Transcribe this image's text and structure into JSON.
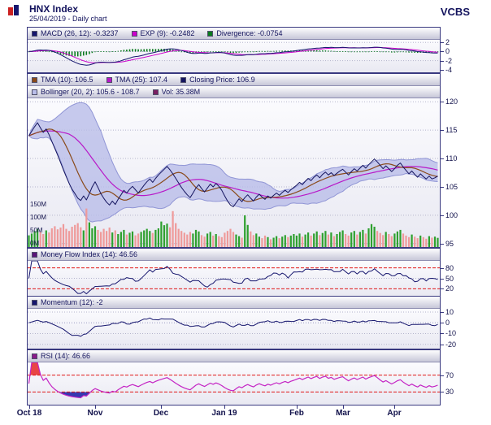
{
  "header": {
    "title": "HNX Index",
    "subtitle": "25/04/2019 - Daily chart",
    "brand": "VCBS"
  },
  "chart_data": {
    "type": "line",
    "title": "HNX Index",
    "subtitle": "25/04/2019 - Daily chart",
    "x_axis": {
      "tick_labels": [
        "Oct 18",
        "Nov",
        "Dec",
        "Jan 19",
        "Feb",
        "Mar",
        "Apr"
      ],
      "tick_indices": [
        0,
        23,
        46,
        68,
        93,
        109,
        127
      ]
    },
    "series": {
      "close": [
        114.0,
        114.8,
        115.6,
        116.3,
        115.4,
        114.6,
        115.2,
        114.2,
        113.0,
        111.8,
        110.6,
        109.3,
        108.0,
        106.8,
        105.6,
        104.6,
        103.8,
        103.0,
        102.6,
        103.4,
        102.7,
        103.8,
        105.0,
        105.9,
        104.9,
        103.8,
        103.0,
        102.3,
        101.8,
        102.5,
        101.9,
        102.8,
        103.6,
        104.4,
        103.9,
        104.6,
        105.1,
        104.5,
        103.9,
        104.6,
        105.3,
        105.9,
        106.4,
        105.8,
        106.5,
        107.1,
        107.6,
        108.1,
        108.6,
        108.0,
        107.3,
        106.5,
        105.7,
        104.9,
        104.2,
        103.6,
        103.1,
        103.9,
        104.8,
        105.4,
        104.7,
        104.1,
        104.8,
        105.5,
        105.0,
        105.6,
        105.1,
        104.4,
        103.4,
        102.5,
        101.8,
        101.5,
        102.2,
        102.9,
        102.4,
        103.1,
        103.6,
        103.0,
        102.5,
        103.2,
        103.7,
        103.2,
        102.8,
        103.4,
        103.0,
        103.5,
        103.9,
        103.5,
        104.0,
        104.4,
        104.0,
        104.5,
        104.9,
        105.3,
        105.8,
        105.4,
        106.0,
        106.5,
        106.1,
        106.7,
        107.1,
        106.6,
        107.2,
        107.6,
        107.1,
        107.5,
        107.0,
        107.4,
        107.8,
        108.1,
        107.6,
        107.1,
        107.7,
        108.2,
        107.8,
        108.3,
        108.8,
        108.3,
        108.9,
        109.4,
        109.9,
        109.4,
        108.8,
        108.2,
        108.7,
        108.2,
        107.7,
        108.2,
        108.8,
        109.2,
        108.5,
        107.9,
        107.3,
        107.8,
        107.2,
        106.7,
        107.3,
        106.8,
        106.4,
        106.9,
        106.4,
        106.6,
        106.9
      ],
      "volume_m": [
        45,
        52,
        61,
        70,
        58,
        50,
        64,
        56,
        72,
        80,
        68,
        75,
        88,
        70,
        62,
        78,
        85,
        92,
        76,
        64,
        148,
        95,
        72,
        80,
        66,
        58,
        70,
        62,
        75,
        56,
        64,
        50,
        58,
        66,
        48,
        55,
        60,
        45,
        52,
        58,
        64,
        70,
        62,
        54,
        66,
        72,
        98,
        84,
        90,
        76,
        138,
        92,
        70,
        62,
        55,
        48,
        58,
        52,
        66,
        60,
        46,
        40,
        52,
        58,
        44,
        50,
        42,
        38,
        55,
        62,
        70,
        58,
        48,
        42,
        36,
        122,
        85,
        60,
        46,
        52,
        40,
        34,
        44,
        38,
        30,
        36,
        42,
        34,
        40,
        46,
        38,
        44,
        50,
        44,
        52,
        40,
        48,
        56,
        44,
        52,
        60,
        46,
        54,
        62,
        48,
        56,
        42,
        50,
        58,
        64,
        50,
        44,
        56,
        62,
        48,
        58,
        66,
        52,
        72,
        88,
        78,
        62,
        54,
        46,
        58,
        50,
        42,
        52,
        60,
        66,
        52,
        44,
        38,
        48,
        40,
        34,
        44,
        38,
        32,
        42,
        36,
        40,
        35.38
      ]
    },
    "panels": {
      "macd": {
        "legend": [
          {
            "color": "#16166e",
            "label": "MACD (26, 12): -0.3237"
          },
          {
            "color": "#cc00cc",
            "label": "EXP (9): -0.2482"
          },
          {
            "color": "#0a7a1e",
            "label": "Divergence: -0.0754"
          }
        ],
        "y_ticks": [
          2,
          0,
          -2,
          -4
        ],
        "y_range": [
          -4.6,
          2.6
        ]
      },
      "price": {
        "legend_row1": [
          {
            "color": "#8a4a1a",
            "label": "TMA (10): 106.5"
          },
          {
            "color": "#b818c8",
            "label": "TMA (25): 107.4"
          },
          {
            "color": "#15155f",
            "label": "Closing Price: 106.9"
          }
        ],
        "legend_row2": [
          {
            "color": "#b9bde8",
            "label": "Bollinger (20, 2): 105.6 - 108.7"
          },
          {
            "color": "#7a1f62",
            "label": "Vol: 35.38M"
          }
        ],
        "y_ticks": [
          120,
          115,
          110,
          105,
          100,
          95
        ],
        "y_range": [
          94.4,
          120.6
        ],
        "vol_ticks": [
          "150M",
          "100M",
          "50M",
          "0M"
        ],
        "vol_max_m": 150
      },
      "mfi": {
        "legend": [
          {
            "color": "#5a1578",
            "label": "Money Flow Index (14): 46.56"
          }
        ],
        "y_ticks": [
          80,
          50,
          20
        ],
        "y_range": [
          0,
          100
        ],
        "bands": [
          80,
          20
        ]
      },
      "momentum": {
        "legend": [
          {
            "color": "#16166e",
            "label": "Momentum (12): -2"
          }
        ],
        "y_ticks": [
          10,
          0,
          -10,
          -20
        ],
        "y_range": [
          -24,
          13
        ]
      },
      "rsi": {
        "legend": [
          {
            "color": "#8a1a8a",
            "label": "RSI (14): 46.66"
          }
        ],
        "y_ticks": [
          70,
          30
        ],
        "y_range": [
          0,
          100
        ],
        "bands": [
          70,
          30
        ]
      }
    },
    "colors": {
      "grid": "#b4b4cc",
      "band_limit": "#e01818",
      "volume_up": "#2ea02e",
      "volume_down": "#ef9a9a",
      "bollinger_fill": "#b9bde8",
      "bollinger_edge": "#9095d5",
      "macd_line": "#16166e",
      "signal_line": "#cc00cc",
      "divergence": "#0a7a1e",
      "tma10": "#8a4a1a",
      "tma25": "#b818c8",
      "close": "#15155f",
      "mfi": "#16166e",
      "momentum": "#16166e",
      "rsi": "#c424c4",
      "rsi_high_fill": "#e84545",
      "rsi_low_fill": "#3838b0"
    }
  }
}
